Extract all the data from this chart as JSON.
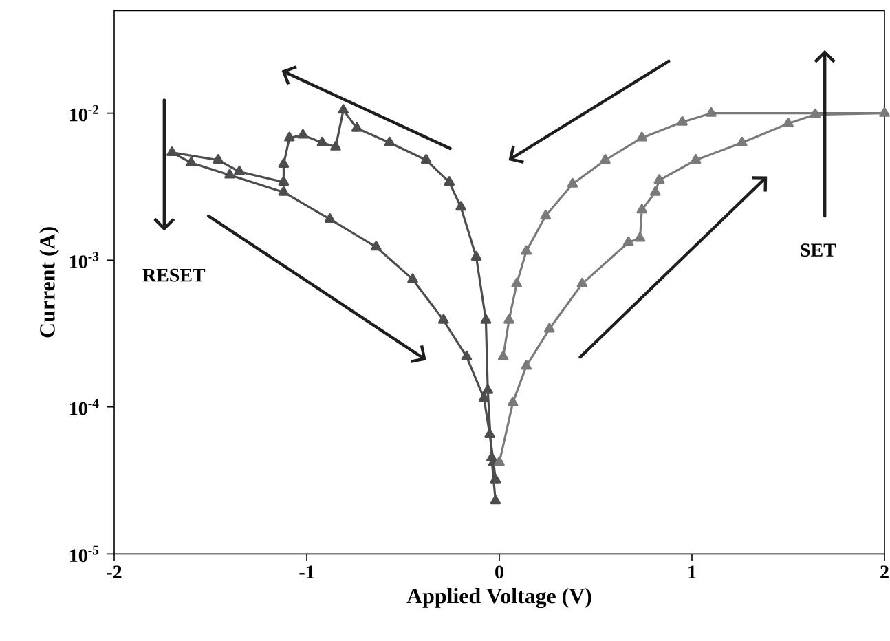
{
  "chart_data": {
    "type": "line",
    "xlabel": "Applied Voltage (V)",
    "ylabel": "Current (A)",
    "log": "y",
    "xlim": [
      -2,
      2
    ],
    "xticks": [
      -2,
      -1,
      0,
      1,
      2
    ],
    "ylim": [
      1e-05,
      0.05
    ],
    "yticks": [
      {
        "value": 1e-05,
        "label": "10$^{-5}$"
      },
      {
        "value": 0.0001,
        "label": "10$^{-4}$"
      },
      {
        "value": 0.001,
        "label": "10$^{-3}$"
      },
      {
        "value": 0.01,
        "label": "10$^{-2}$"
      }
    ],
    "marker": "triangle",
    "line_style": "solid",
    "series": [
      {
        "color": "#4d4d4f",
        "x": [
          -0.02,
          -0.04,
          -0.06,
          -0.07,
          -0.12,
          -0.2,
          -0.26,
          -0.38,
          -0.57,
          -0.74,
          -0.81,
          -0.85,
          -0.92,
          -1.02,
          -1.09,
          -1.12,
          -1.12,
          -1.35,
          -1.46,
          -1.7,
          -1.6,
          -1.4,
          -1.12,
          -0.88,
          -0.64,
          -0.45,
          -0.29,
          -0.17,
          -0.08,
          -0.05,
          -0.03,
          -0.02
        ],
        "values": [
          2.3e-05,
          4.5e-05,
          0.00013,
          0.00039,
          0.00105,
          0.0023,
          0.0034,
          0.0048,
          0.0063,
          0.0079,
          0.0105,
          0.0059,
          0.0063,
          0.0071,
          0.0068,
          0.0045,
          0.0034,
          0.004,
          0.0048,
          0.0054,
          0.0046,
          0.0038,
          0.0029,
          0.0019,
          0.00123,
          0.00074,
          0.00039,
          0.00022,
          0.000115,
          6.5e-05,
          4.2e-05,
          3.2e-05
        ]
      },
      {
        "color": "#7a7a7c",
        "x": [
          0.0,
          0.07,
          0.14,
          0.26,
          0.43,
          0.67,
          0.73,
          0.74,
          0.81,
          0.83,
          1.02,
          1.26,
          1.5,
          1.64,
          2.0,
          1.1,
          0.95,
          0.74,
          0.55,
          0.38,
          0.24,
          0.14,
          0.09,
          0.05,
          0.02
        ],
        "values": [
          4.2e-05,
          0.000107,
          0.00019,
          0.00034,
          0.00069,
          0.00132,
          0.00141,
          0.0022,
          0.0029,
          0.0035,
          0.0048,
          0.0063,
          0.0085,
          0.0098,
          0.01,
          0.01,
          0.0087,
          0.0068,
          0.0048,
          0.0033,
          0.002,
          0.00115,
          0.00069,
          0.00039,
          0.00022
        ]
      }
    ],
    "annotations": [
      "RESET",
      "SET"
    ]
  }
}
